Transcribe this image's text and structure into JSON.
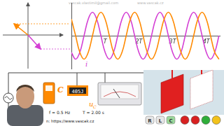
{
  "header": {
    "email": "vascak.vlastimil@gmail.com",
    "web": "www.vascak.cz"
  },
  "chart_data": {
    "type": "line",
    "x": [
      0,
      0.125,
      0.25,
      0.375,
      0.5,
      0.625,
      0.75,
      0.875,
      1,
      1.125,
      1.25,
      1.375,
      1.5,
      1.625,
      1.75,
      1.875,
      2,
      2.125,
      2.25,
      2.375,
      2.5,
      2.625,
      2.75,
      2.875,
      3,
      3.125,
      3.25,
      3.375,
      3.5,
      3.625,
      3.75,
      3.875,
      4,
      4.125,
      4.25,
      4.375
    ],
    "series": [
      {
        "color": "#ff8a00",
        "values": [
          0.71,
          0,
          -0.71,
          -1,
          -0.71,
          0,
          0.71,
          1,
          0.71,
          0,
          -0.71,
          -1,
          -0.71,
          0,
          0.71,
          1,
          0.71,
          0,
          -0.71,
          -1,
          -0.71,
          0,
          0.71,
          1,
          0.71,
          0,
          -0.71,
          -1,
          -0.71,
          0,
          0.71,
          1,
          0.71,
          0,
          -0.71,
          -1
        ]
      },
      {
        "color": "#d43fd4",
        "values": [
          -0.71,
          -1,
          -0.71,
          0,
          0.71,
          1,
          0.71,
          0,
          -0.71,
          -1,
          -0.71,
          0,
          0.71,
          1,
          0.71,
          0,
          -0.71,
          -1,
          -0.71,
          0,
          0.71,
          1,
          0.71,
          0,
          -0.71,
          -1,
          -0.71,
          0,
          0.71,
          1,
          0.71,
          0,
          -0.71,
          -1,
          -0.71,
          0
        ]
      }
    ],
    "xlim": [
      0,
      4.4
    ],
    "xticks": [
      {
        "value": 1,
        "label": "T"
      },
      {
        "value": 2,
        "label": "2T"
      },
      {
        "value": 3,
        "label": "3T"
      },
      {
        "value": 4,
        "label": "4T"
      }
    ],
    "ylim": [
      -1.4,
      1.4
    ],
    "tick_labels": "x",
    "grid": false
  },
  "circuit": {
    "current_label": "i",
    "capacitor_label": "C",
    "display": "405J",
    "voltage_label": {
      "base": "u",
      "subscript": "C"
    },
    "frequency": "f = 0.5 Hz",
    "period": "T = 2.00 s"
  },
  "footer": "n: https://www.vascak.cz",
  "buttons": [
    "R",
    "L",
    "C"
  ]
}
